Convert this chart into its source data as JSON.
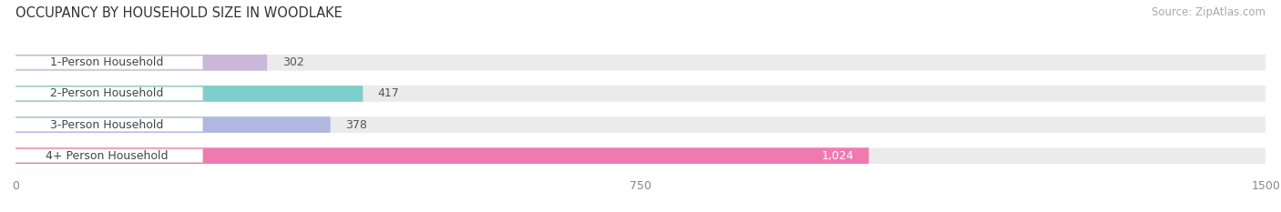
{
  "title": "OCCUPANCY BY HOUSEHOLD SIZE IN WOODLAKE",
  "source": "Source: ZipAtlas.com",
  "categories": [
    "1-Person Household",
    "2-Person Household",
    "3-Person Household",
    "4+ Person Household"
  ],
  "values": [
    302,
    417,
    378,
    1024
  ],
  "bar_colors": [
    "#c9b8d8",
    "#7ecfcb",
    "#b0b8e0",
    "#f07ab0"
  ],
  "bar_labels": [
    "302",
    "417",
    "378",
    "1,024"
  ],
  "label_colors": [
    "#555555",
    "#555555",
    "#555555",
    "#ffffff"
  ],
  "xlim": [
    0,
    1500
  ],
  "xticks": [
    0,
    750,
    1500
  ],
  "background_color": "#ffffff",
  "bar_track_color": "#ebebeb",
  "title_fontsize": 10.5,
  "source_fontsize": 8.5,
  "tick_fontsize": 9,
  "label_fontsize": 9,
  "category_fontsize": 9
}
